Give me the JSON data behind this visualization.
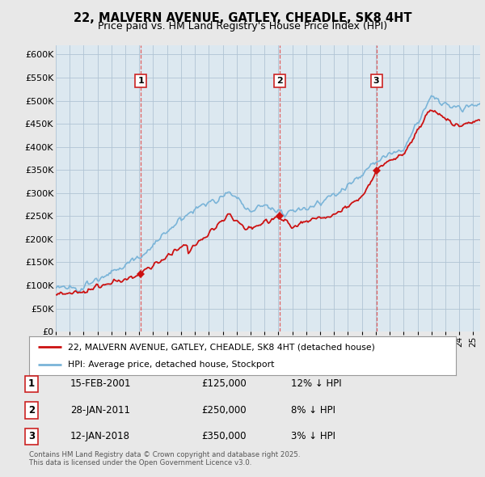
{
  "title1": "22, MALVERN AVENUE, GATLEY, CHEADLE, SK8 4HT",
  "title2": "Price paid vs. HM Land Registry's House Price Index (HPI)",
  "ylim": [
    0,
    620000
  ],
  "yticks": [
    0,
    50000,
    100000,
    150000,
    200000,
    250000,
    300000,
    350000,
    400000,
    450000,
    500000,
    550000,
    600000
  ],
  "ytick_labels": [
    "£0",
    "£50K",
    "£100K",
    "£150K",
    "£200K",
    "£250K",
    "£300K",
    "£350K",
    "£400K",
    "£450K",
    "£500K",
    "£550K",
    "£600K"
  ],
  "bg_color": "#e8e8e8",
  "plot_bg_color": "#dce8f0",
  "grid_color": "#b0c4d4",
  "hpi_color": "#7ab4d8",
  "price_color": "#cc1111",
  "sale_line_color": "#e06060",
  "sales": [
    {
      "year": 2001.12,
      "price": 125000,
      "label": "1",
      "date": "15-FEB-2001",
      "hpi_diff": "12% ↓ HPI"
    },
    {
      "year": 2011.08,
      "price": 250000,
      "label": "2",
      "date": "28-JAN-2011",
      "hpi_diff": "8% ↓ HPI"
    },
    {
      "year": 2018.04,
      "price": 350000,
      "label": "3",
      "date": "12-JAN-2018",
      "hpi_diff": "3% ↓ HPI"
    }
  ],
  "legend_line1": "22, MALVERN AVENUE, GATLEY, CHEADLE, SK8 4HT (detached house)",
  "legend_line2": "HPI: Average price, detached house, Stockport",
  "footnote": "Contains HM Land Registry data © Crown copyright and database right 2025.\nThis data is licensed under the Open Government Licence v3.0.",
  "xmin": 1995,
  "xmax": 2025.5
}
